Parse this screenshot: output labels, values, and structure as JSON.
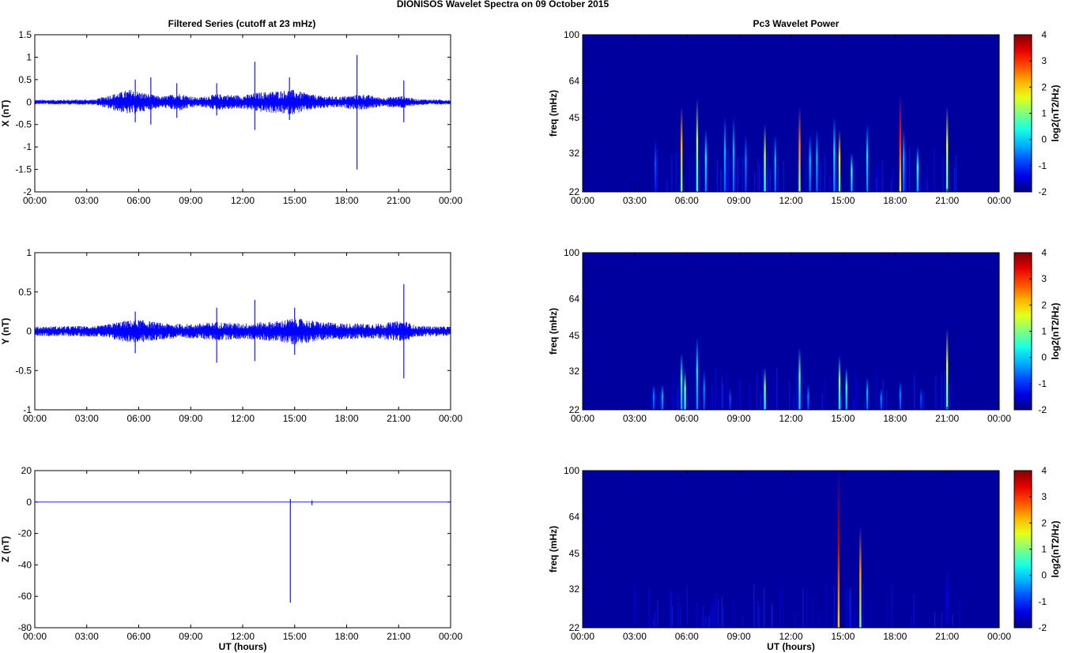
{
  "figure": {
    "title": "DIONISOS Wavelet Spectra on 09 October   2015",
    "left_title": "Filtered Series (cutoff at 23 mHz)",
    "right_title": "Pc3 Wavelet Power",
    "xlabel": "UT (hours)"
  },
  "chart_data": [
    {
      "id": "x-series",
      "type": "line",
      "ylabel": "X (nT)",
      "ylim": [
        -2,
        1.5
      ],
      "yticks": [
        "1.5",
        "1",
        "0.5",
        "0",
        "-0.5",
        "-1",
        "-1.5",
        "-2"
      ],
      "xlim": [
        0,
        24
      ],
      "xticks": [
        "00:00",
        "03:00",
        "06:00",
        "09:00",
        "12:00",
        "15:00",
        "18:00",
        "21:00",
        "00:00"
      ],
      "color": "#0000ff",
      "activity": [
        [
          0,
          0.05
        ],
        [
          3.5,
          0.06
        ],
        [
          4.2,
          0.15
        ],
        [
          5.5,
          0.28
        ],
        [
          7.3,
          0.12
        ],
        [
          8.3,
          0.2
        ],
        [
          9.4,
          0.1
        ],
        [
          10.5,
          0.18
        ],
        [
          12,
          0.15
        ],
        [
          13,
          0.22
        ],
        [
          14.8,
          0.28
        ],
        [
          16.3,
          0.15
        ],
        [
          17.5,
          0.12
        ],
        [
          19,
          0.18
        ],
        [
          20,
          0.1
        ],
        [
          21.3,
          0.14
        ],
        [
          22,
          0.07
        ],
        [
          24,
          0.05
        ]
      ],
      "spikes": [
        [
          5.8,
          0.5,
          -0.45
        ],
        [
          6.7,
          0.55,
          -0.5
        ],
        [
          8.2,
          0.42,
          -0.35
        ],
        [
          10.5,
          0.42,
          -0.3
        ],
        [
          12.7,
          0.9,
          -0.62
        ],
        [
          14.7,
          0.55,
          -0.4
        ],
        [
          18.6,
          1.05,
          -1.5
        ],
        [
          21.3,
          0.48,
          -0.45
        ]
      ]
    },
    {
      "id": "y-series",
      "type": "line",
      "ylabel": "Y (nT)",
      "ylim": [
        -1,
        1
      ],
      "yticks": [
        "1",
        "0.5",
        "0",
        "-0.5",
        "-1"
      ],
      "xlim": [
        0,
        24
      ],
      "xticks": [
        "00:00",
        "03:00",
        "06:00",
        "09:00",
        "12:00",
        "15:00",
        "18:00",
        "21:00",
        "00:00"
      ],
      "color": "#0000ff",
      "activity": [
        [
          0,
          0.06
        ],
        [
          3.8,
          0.07
        ],
        [
          5,
          0.13
        ],
        [
          6,
          0.15
        ],
        [
          7.5,
          0.1
        ],
        [
          9,
          0.09
        ],
        [
          10.5,
          0.12
        ],
        [
          12,
          0.1
        ],
        [
          14,
          0.13
        ],
        [
          15,
          0.17
        ],
        [
          16.5,
          0.12
        ],
        [
          18,
          0.1
        ],
        [
          20,
          0.1
        ],
        [
          21.3,
          0.14
        ],
        [
          22,
          0.07
        ],
        [
          24,
          0.06
        ]
      ],
      "spikes": [
        [
          5.8,
          0.25,
          -0.28
        ],
        [
          10.5,
          0.3,
          -0.4
        ],
        [
          12.7,
          0.4,
          -0.38
        ],
        [
          15,
          0.3,
          -0.3
        ],
        [
          21.3,
          0.6,
          -0.6
        ]
      ]
    },
    {
      "id": "z-series",
      "type": "line",
      "ylabel": "Z (nT)",
      "xlabel": "UT (hours)",
      "ylim": [
        -80,
        20
      ],
      "yticks": [
        "20",
        "0",
        "-20",
        "-40",
        "-60",
        "-80"
      ],
      "xlim": [
        0,
        24
      ],
      "xticks": [
        "00:00",
        "03:00",
        "06:00",
        "09:00",
        "12:00",
        "15:00",
        "18:00",
        "21:00",
        "00:00"
      ],
      "color": "#0000ff",
      "activity": [
        [
          0,
          0.15
        ],
        [
          24,
          0.15
        ]
      ],
      "spikes": [
        [
          14.75,
          2,
          -64
        ],
        [
          16,
          1,
          -2
        ]
      ]
    },
    {
      "id": "x-wavelet",
      "type": "heatmap",
      "ylabel": "freq (mHz)",
      "yscale": "log",
      "ylim": [
        22,
        100
      ],
      "yticks": [
        "100",
        "64",
        "45",
        "32",
        "22"
      ],
      "xlim": [
        0,
        24
      ],
      "xticks": [
        "00:00",
        "03:00",
        "06:00",
        "09:00",
        "12:00",
        "15:00",
        "18:00",
        "21:00",
        "00:00"
      ],
      "colorbar": {
        "label": "log2(nT2/Hz)",
        "range": [
          -2,
          4
        ],
        "ticks": [
          "4",
          "3",
          "2",
          "1",
          "0",
          "-1",
          "-2"
        ]
      },
      "streaks": [
        [
          4.2,
          36,
          0.2
        ],
        [
          5.7,
          50,
          0.7
        ],
        [
          6.6,
          54,
          0.55
        ],
        [
          7.1,
          40,
          0.35
        ],
        [
          8.2,
          45,
          0.3
        ],
        [
          8.7,
          45,
          0.3
        ],
        [
          9.4,
          38,
          0.25
        ],
        [
          10.5,
          42,
          0.55
        ],
        [
          11.1,
          38,
          0.3
        ],
        [
          12.5,
          50,
          0.75
        ],
        [
          13.1,
          38,
          0.3
        ],
        [
          13.5,
          40,
          0.3
        ],
        [
          14.5,
          45,
          0.35
        ],
        [
          14.8,
          40,
          0.65
        ],
        [
          15.5,
          32,
          0.4
        ],
        [
          16.4,
          42,
          0.35
        ],
        [
          18.3,
          56,
          0.85
        ],
        [
          18.5,
          40,
          0.3
        ],
        [
          19.3,
          34,
          0.4
        ],
        [
          21,
          50,
          0.6
        ]
      ]
    },
    {
      "id": "y-wavelet",
      "type": "heatmap",
      "ylabel": "freq (mHz)",
      "yscale": "log",
      "ylim": [
        22,
        100
      ],
      "yticks": [
        "100",
        "64",
        "45",
        "32",
        "22"
      ],
      "xlim": [
        0,
        24
      ],
      "xticks": [
        "00:00",
        "03:00",
        "06:00",
        "09:00",
        "12:00",
        "15:00",
        "18:00",
        "21:00",
        "00:00"
      ],
      "colorbar": {
        "label": "log2(nT2/Hz)",
        "range": [
          -2,
          4
        ],
        "ticks": [
          "4",
          "3",
          "2",
          "1",
          "0",
          "-1",
          "-2"
        ]
      },
      "streaks": [
        [
          4.1,
          28,
          0.25
        ],
        [
          4.6,
          28,
          0.3
        ],
        [
          5.7,
          38,
          0.4
        ],
        [
          5.9,
          32,
          0.5
        ],
        [
          6.6,
          44,
          0.35
        ],
        [
          7.0,
          32,
          0.25
        ],
        [
          8.5,
          27,
          0.2
        ],
        [
          10.5,
          33,
          0.5
        ],
        [
          12.5,
          40,
          0.45
        ],
        [
          13,
          28,
          0.25
        ],
        [
          14.8,
          37,
          0.5
        ],
        [
          15.2,
          33,
          0.4
        ],
        [
          16.4,
          30,
          0.3
        ],
        [
          17.2,
          27,
          0.25
        ],
        [
          18.3,
          29,
          0.25
        ],
        [
          19.5,
          27,
          0.2
        ],
        [
          21,
          48,
          0.6
        ]
      ]
    },
    {
      "id": "z-wavelet",
      "type": "heatmap",
      "ylabel": "freq (mHz)",
      "yscale": "log",
      "xlabel": "UT (hours)",
      "ylim": [
        22,
        100
      ],
      "yticks": [
        "100",
        "64",
        "45",
        "32",
        "22"
      ],
      "xlim": [
        0,
        24
      ],
      "xticks": [
        "00:00",
        "03:00",
        "06:00",
        "09:00",
        "12:00",
        "15:00",
        "18:00",
        "21:00",
        "00:00"
      ],
      "colorbar": {
        "label": "log2(nT2/Hz)",
        "range": [
          -2,
          4
        ],
        "ticks": [
          "4",
          "3",
          "2",
          "1",
          "0",
          "-1",
          "-2"
        ]
      },
      "streaks": [
        [
          3.0,
          34,
          0.08
        ],
        [
          14.75,
          100,
          0.95
        ],
        [
          16,
          58,
          0.72
        ],
        [
          21,
          38,
          0.12
        ]
      ]
    }
  ]
}
